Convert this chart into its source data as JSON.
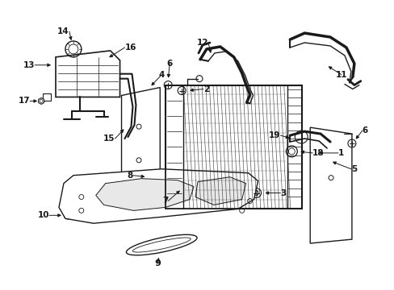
{
  "background_color": "#ffffff",
  "line_color": "#1a1a1a",
  "text_color": "#1a1a1a",
  "fig_width": 4.89,
  "fig_height": 3.6,
  "dpi": 100
}
